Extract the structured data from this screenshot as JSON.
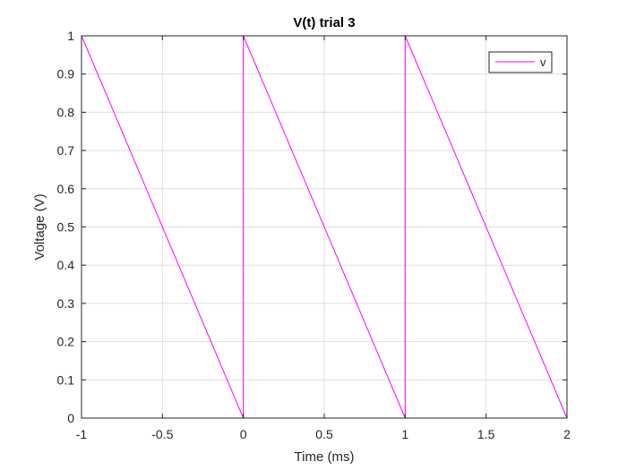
{
  "chart_data": {
    "type": "line",
    "title": "V(t) trial 3",
    "xlabel": "Time (ms)",
    "ylabel": "Voltage (V)",
    "xlim": [
      -1,
      2
    ],
    "ylim": [
      0,
      1
    ],
    "xticks": [
      -1,
      -0.5,
      0,
      0.5,
      1,
      1.5,
      2
    ],
    "xtick_labels": [
      "-1",
      "-0.5",
      "0",
      "0.5",
      "1",
      "1.5",
      "2"
    ],
    "yticks": [
      0,
      0.1,
      0.2,
      0.3,
      0.4,
      0.5,
      0.6,
      0.7,
      0.8,
      0.9,
      1
    ],
    "ytick_labels": [
      "0",
      "0.1",
      "0.2",
      "0.3",
      "0.4",
      "0.5",
      "0.6",
      "0.7",
      "0.8",
      "0.9",
      "1"
    ],
    "grid": true,
    "legend_position": "top-right",
    "series": [
      {
        "name": "v",
        "color": "#ff00ff",
        "x": [
          -1,
          0,
          0,
          1,
          1,
          2,
          2
        ],
        "y": [
          1,
          0,
          1,
          0,
          1,
          0,
          1
        ]
      }
    ]
  }
}
